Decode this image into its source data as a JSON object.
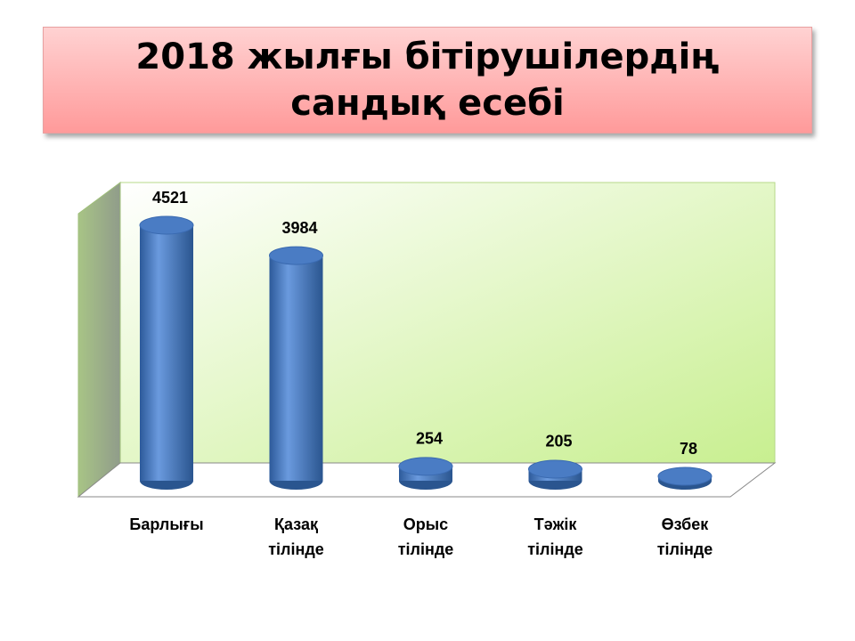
{
  "chart_data": {
    "type": "bar3d",
    "title": "2018 жылғы бітірушілердің сандық есебі",
    "categories": [
      "Барлығы",
      "Қазақ тілінде",
      "Орыс тілінде",
      "Тәжік тілінде",
      "Өзбек тілінде"
    ],
    "values": [
      4521,
      3984,
      254,
      205,
      78
    ],
    "color": "#4a7cc4"
  }
}
